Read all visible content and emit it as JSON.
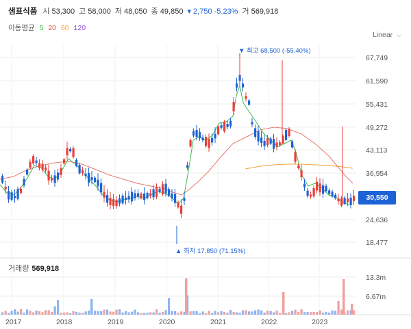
{
  "header": {
    "name": "샘표식품",
    "open_label": "시",
    "open": "53,300",
    "high_label": "고",
    "high": "58,000",
    "low_label": "저",
    "low": "48,050",
    "close_label": "종",
    "close": "49,850",
    "change": "▾ 2,750 -5.23%",
    "volume_label": "거",
    "volume": "569,918"
  },
  "moving_average": {
    "label": "이동평균",
    "periods": [
      "5",
      "20",
      "60",
      "120"
    ],
    "colors": [
      "#3cb84a",
      "#e8493e",
      "#f2a13a",
      "#8b4fd6"
    ]
  },
  "scale_toggle": {
    "label": "Linear",
    "icon": "chevron-down-icon"
  },
  "current_price": "30,550",
  "annotations": {
    "max": "▼ 최고 68,500 (-55.40%)",
    "min": "▲ 최저 17,850 (71.15%)"
  },
  "price_axis": [
    "67,749",
    "61,590",
    "55,431",
    "49,272",
    "43,113",
    "36,954",
    "24,636",
    "18,477"
  ],
  "volume_panel": {
    "label": "거래량",
    "value": "569,918",
    "axis": [
      "13.3m",
      "6.67m"
    ]
  },
  "time_axis": [
    "2017",
    "2018",
    "2019",
    "2020",
    "2021",
    "2022",
    "2023"
  ],
  "colors": {
    "up": "#e8403a",
    "down": "#1e63d6",
    "vol_up": "#f0a0a0",
    "vol_down": "#8fb4ee"
  }
}
